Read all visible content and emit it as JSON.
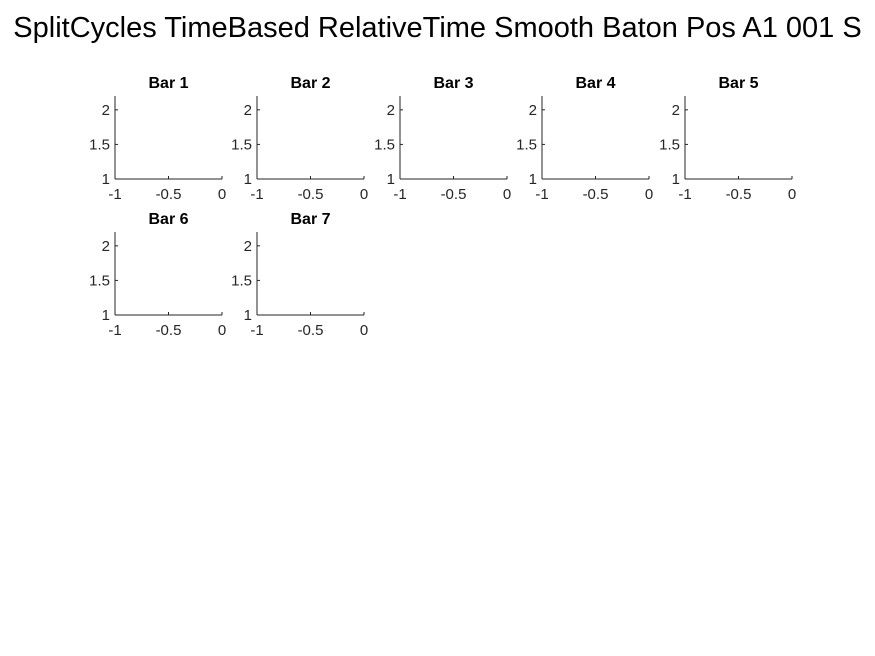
{
  "figure": {
    "title": "SplitCycles TimeBased RelativeTime Smooth Baton Pos A1 001 S"
  },
  "colors": {
    "axis": "#262626",
    "title": "#000000",
    "background": "#ffffff"
  },
  "chart_data": [
    {
      "type": "line",
      "title": "Bar 1",
      "xlim": [
        -1,
        0
      ],
      "ylim": [
        1,
        2.2
      ],
      "xticks": [
        "-1",
        "-0.5",
        "0"
      ],
      "yticks": [
        "1",
        "1.5",
        "2"
      ],
      "series": []
    },
    {
      "type": "line",
      "title": "Bar 2",
      "xlim": [
        -1,
        0
      ],
      "ylim": [
        1,
        2.2
      ],
      "xticks": [
        "-1",
        "-0.5",
        "0"
      ],
      "yticks": [
        "1",
        "1.5",
        "2"
      ],
      "series": []
    },
    {
      "type": "line",
      "title": "Bar 3",
      "xlim": [
        -1,
        0
      ],
      "ylim": [
        1,
        2.2
      ],
      "xticks": [
        "-1",
        "-0.5",
        "0"
      ],
      "yticks": [
        "1",
        "1.5",
        "2"
      ],
      "series": []
    },
    {
      "type": "line",
      "title": "Bar 4",
      "xlim": [
        -1,
        0
      ],
      "ylim": [
        1,
        2.2
      ],
      "xticks": [
        "-1",
        "-0.5",
        "0"
      ],
      "yticks": [
        "1",
        "1.5",
        "2"
      ],
      "series": []
    },
    {
      "type": "line",
      "title": "Bar 5",
      "xlim": [
        -1,
        0
      ],
      "ylim": [
        1,
        2.2
      ],
      "xticks": [
        "-1",
        "-0.5",
        "0"
      ],
      "yticks": [
        "1",
        "1.5",
        "2"
      ],
      "series": []
    },
    {
      "type": "line",
      "title": "Bar 6",
      "xlim": [
        -1,
        0
      ],
      "ylim": [
        1,
        2.2
      ],
      "xticks": [
        "-1",
        "-0.5",
        "0"
      ],
      "yticks": [
        "1",
        "1.5",
        "2"
      ],
      "series": []
    },
    {
      "type": "line",
      "title": "Bar 7",
      "xlim": [
        -1,
        0
      ],
      "ylim": [
        1,
        2.2
      ],
      "xticks": [
        "-1",
        "-0.5",
        "0"
      ],
      "yticks": [
        "1",
        "1.5",
        "2"
      ],
      "series": []
    }
  ]
}
